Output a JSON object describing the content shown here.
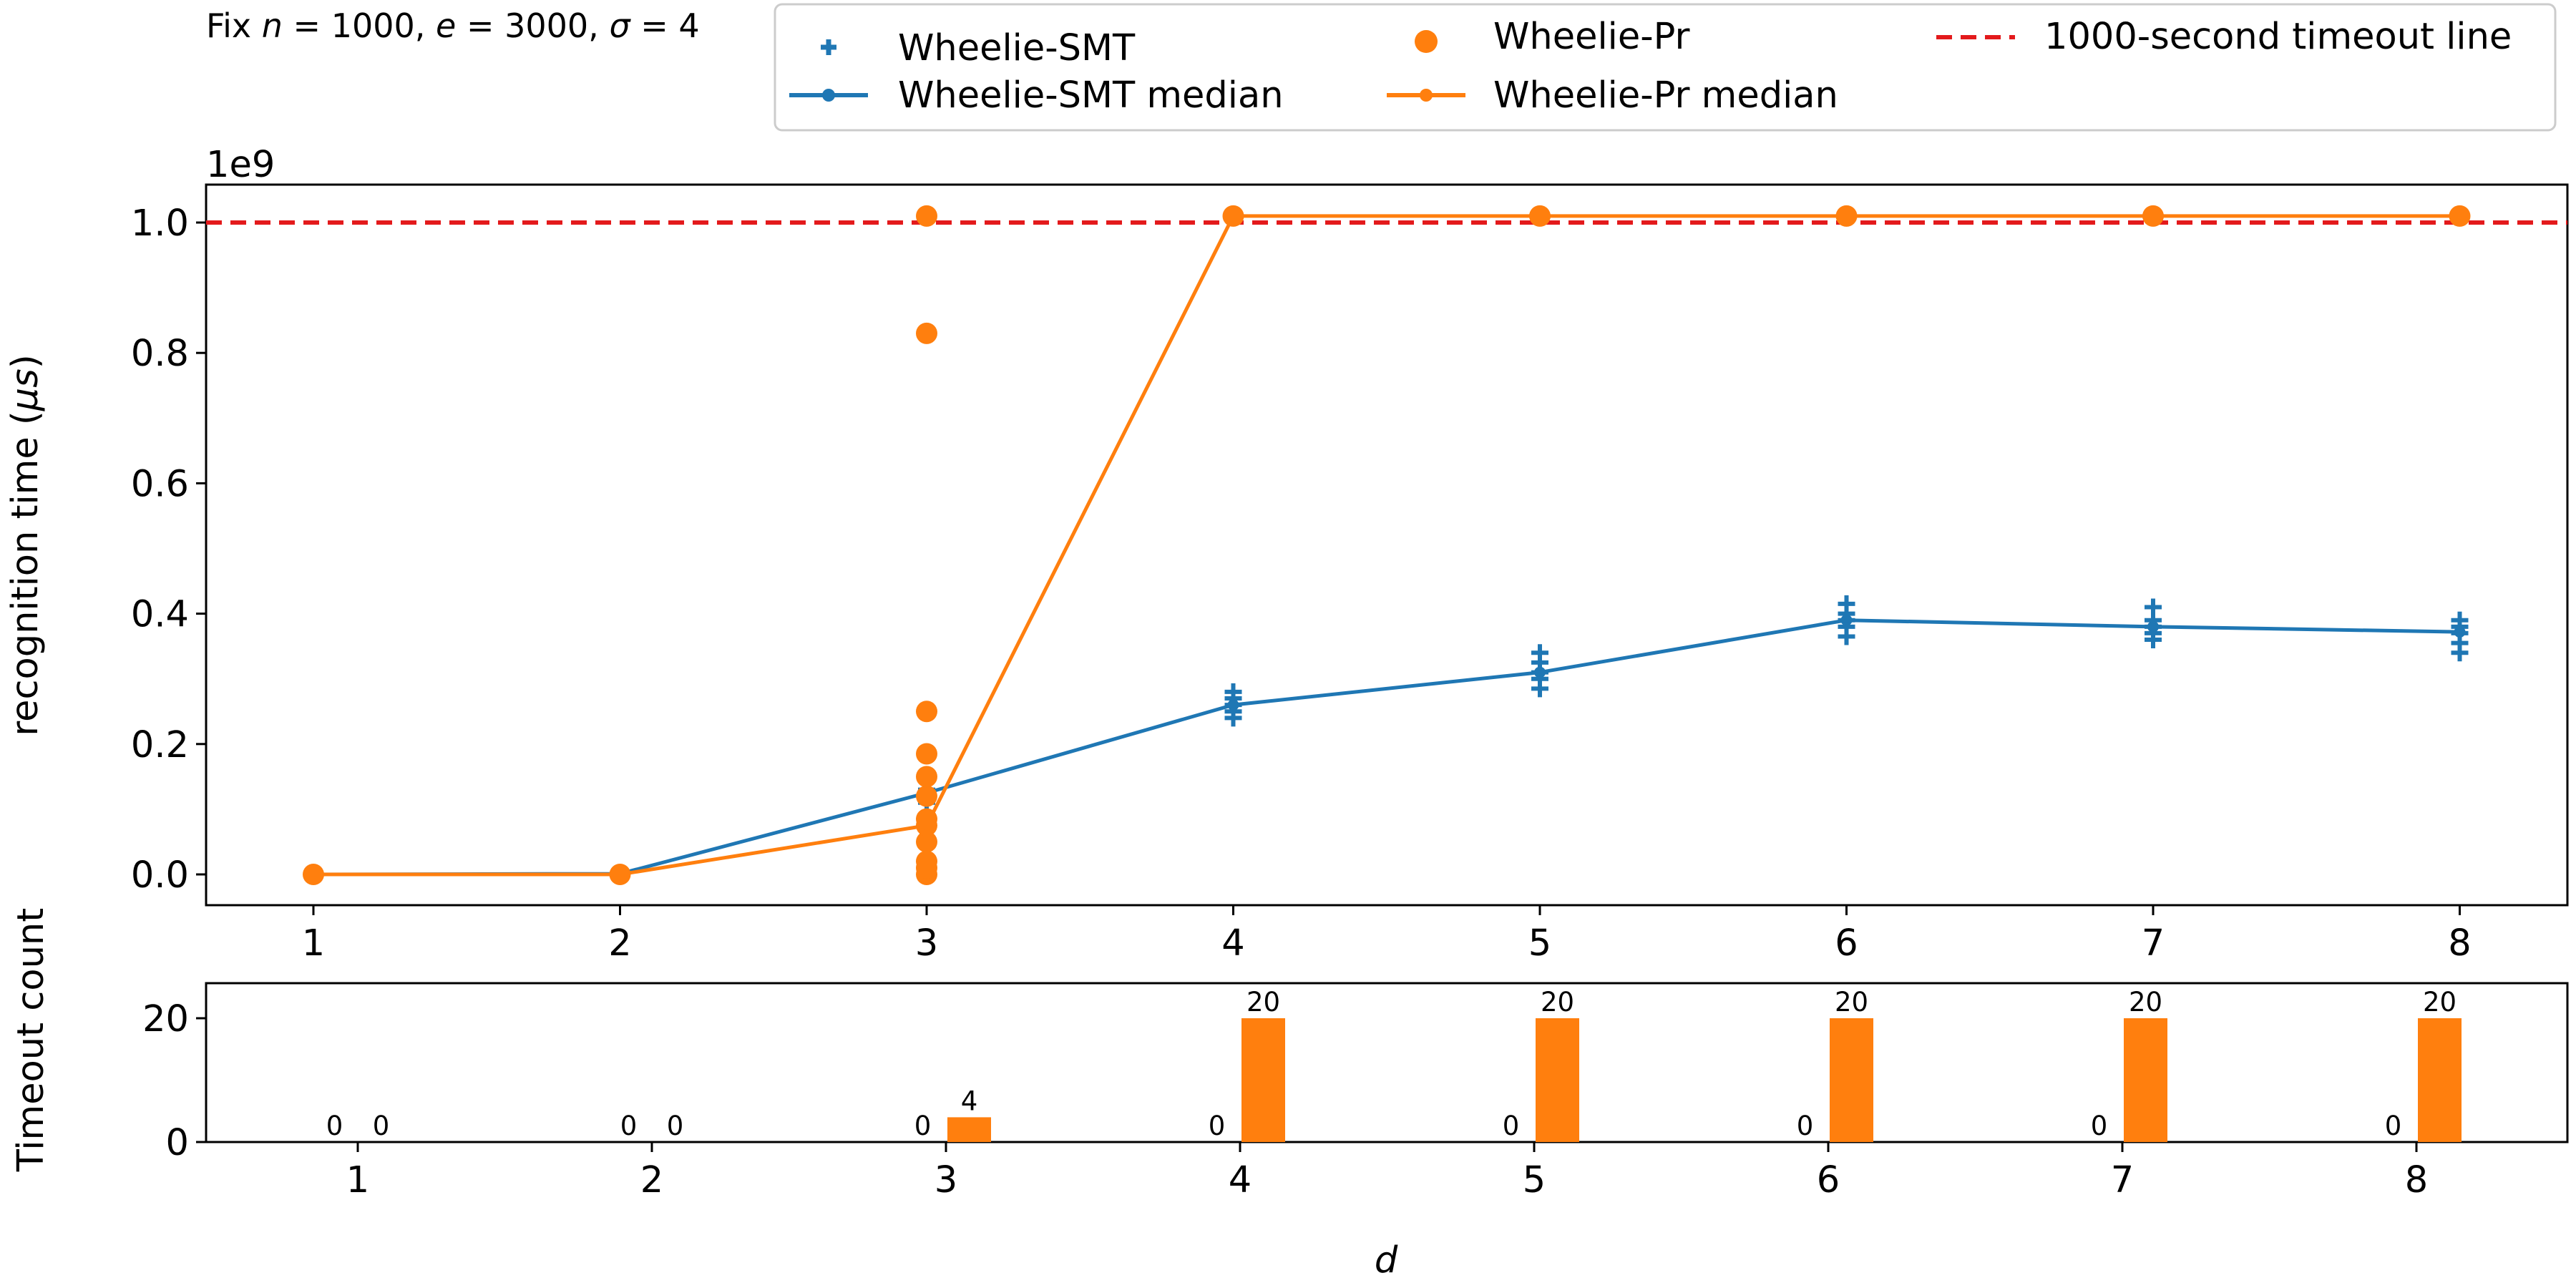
{
  "caption": {
    "prefix": "Fix ",
    "n": "n",
    "n_val": " = 1000, ",
    "e": "e",
    "e_val": " = 3000, ",
    "sigma": "σ",
    "sigma_val": " = 4"
  },
  "legend": {
    "smt": "Wheelie-SMT",
    "pr": "Wheelie-Pr",
    "timeout": "1000-second timeout line",
    "smt_median": "Wheelie-SMT median",
    "pr_median": "Wheelie-Pr median"
  },
  "colors": {
    "smt": "#1f77b4",
    "pr": "#ff7f0e",
    "timeout": "#e31a1c",
    "axis": "#000000"
  },
  "chart_data": [
    {
      "type": "scatter",
      "multiplier_label": "1e9",
      "ylabel": {
        "text": "recognition time (",
        "unit": "μs",
        "close": ")"
      },
      "x_ticks": [
        "1",
        "2",
        "3",
        "4",
        "5",
        "6",
        "7",
        "8"
      ],
      "y_ticks": [
        "0.0",
        "0.2",
        "0.4",
        "0.6",
        "0.8",
        "1.0"
      ],
      "ylim": [
        -0.05,
        1.06
      ],
      "xlim": [
        0.65,
        8.35
      ],
      "timeout_line": 1.0,
      "series": [
        {
          "name": "Wheelie-SMT",
          "marker": "plus",
          "points": [
            [
              1,
              0
            ],
            [
              1,
              0.001
            ],
            [
              2,
              0
            ],
            [
              2,
              0.001
            ],
            [
              3,
              0.11
            ],
            [
              3,
              0.12
            ],
            [
              3,
              0.125
            ],
            [
              3,
              0.13
            ],
            [
              4,
              0.24
            ],
            [
              4,
              0.25
            ],
            [
              4,
              0.26
            ],
            [
              4,
              0.27
            ],
            [
              4,
              0.28
            ],
            [
              5,
              0.285
            ],
            [
              5,
              0.3
            ],
            [
              5,
              0.31
            ],
            [
              5,
              0.325
            ],
            [
              5,
              0.34
            ],
            [
              6,
              0.365
            ],
            [
              6,
              0.38
            ],
            [
              6,
              0.39
            ],
            [
              6,
              0.4
            ],
            [
              6,
              0.415
            ],
            [
              7,
              0.36
            ],
            [
              7,
              0.37
            ],
            [
              7,
              0.38
            ],
            [
              7,
              0.39
            ],
            [
              7,
              0.41
            ],
            [
              8,
              0.34
            ],
            [
              8,
              0.355
            ],
            [
              8,
              0.37
            ],
            [
              8,
              0.38
            ],
            [
              8,
              0.39
            ]
          ]
        },
        {
          "name": "Wheelie-Pr",
          "marker": "circle",
          "points": [
            [
              1,
              0
            ],
            [
              2,
              0
            ],
            [
              3,
              0.0
            ],
            [
              3,
              0.01
            ],
            [
              3,
              0.02
            ],
            [
              3,
              0.05
            ],
            [
              3,
              0.075
            ],
            [
              3,
              0.085
            ],
            [
              3,
              0.12
            ],
            [
              3,
              0.15
            ],
            [
              3,
              0.185
            ],
            [
              3,
              0.25
            ],
            [
              3,
              0.83
            ],
            [
              3,
              1.01
            ],
            [
              4,
              1.01
            ],
            [
              5,
              1.01
            ],
            [
              6,
              1.01
            ],
            [
              7,
              1.01
            ],
            [
              8,
              1.01
            ]
          ]
        },
        {
          "name": "Wheelie-SMT median",
          "marker": "line",
          "x": [
            1,
            2,
            3,
            4,
            5,
            6,
            7,
            8
          ],
          "y": [
            0,
            0.001,
            0.125,
            0.26,
            0.31,
            0.39,
            0.38,
            0.372
          ]
        },
        {
          "name": "Wheelie-Pr median",
          "marker": "line",
          "x": [
            1,
            2,
            3,
            4,
            5,
            6,
            7,
            8
          ],
          "y": [
            0,
            0,
            0.075,
            1.01,
            1.01,
            1.01,
            1.01,
            1.01
          ]
        }
      ]
    },
    {
      "type": "bar",
      "ylabel": "Timeout count",
      "xlabel": "d",
      "categories": [
        "1",
        "2",
        "3",
        "4",
        "5",
        "6",
        "7",
        "8"
      ],
      "y_ticks": [
        "0",
        "20"
      ],
      "ylim": [
        0,
        26
      ],
      "series": [
        {
          "name": "Wheelie-SMT",
          "values": [
            0,
            0,
            0,
            0,
            0,
            0,
            0,
            0
          ]
        },
        {
          "name": "Wheelie-Pr",
          "values": [
            0,
            0,
            4,
            20,
            20,
            20,
            20,
            20
          ]
        }
      ]
    }
  ]
}
